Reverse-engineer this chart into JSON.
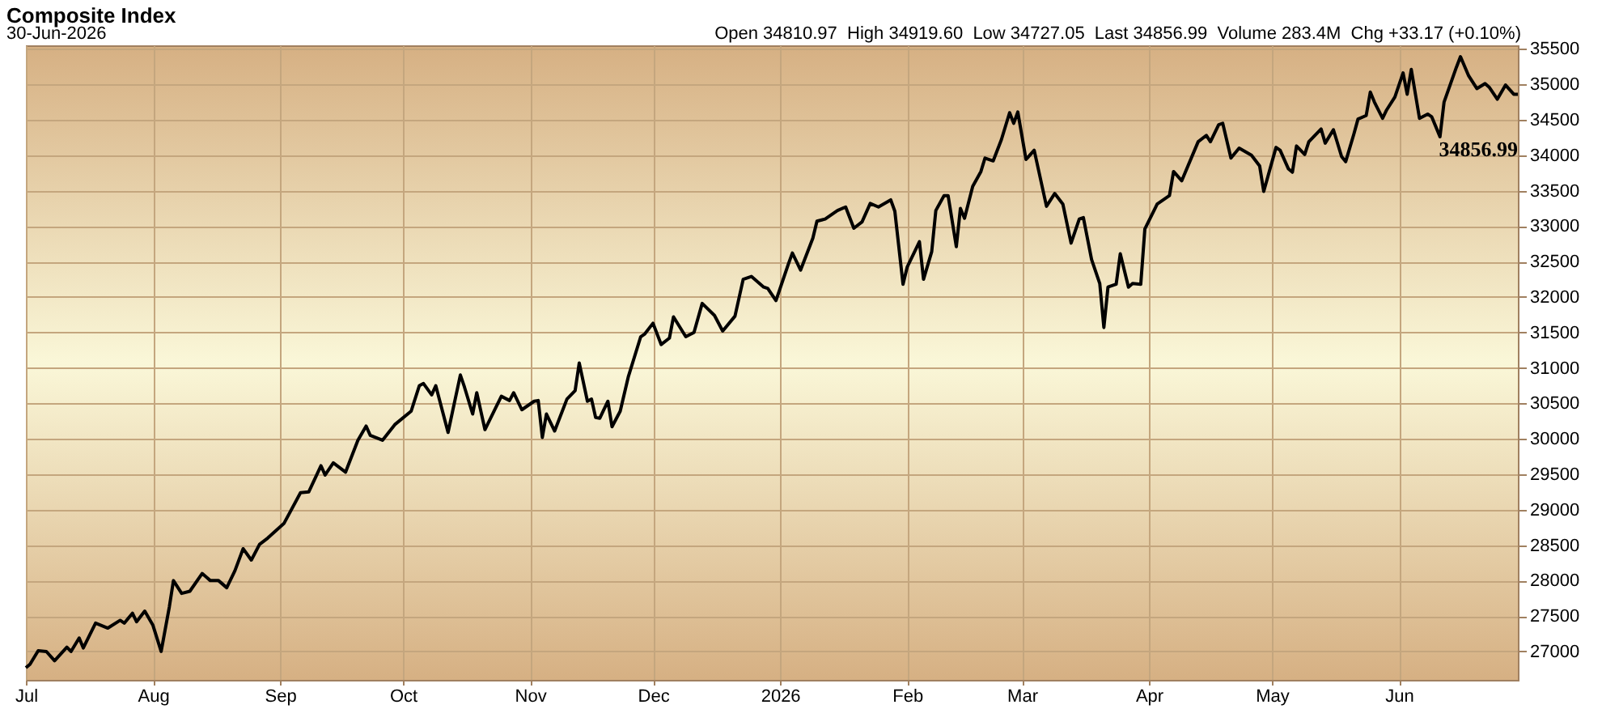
{
  "chart_data": {
    "type": "line",
    "title": "Composite Index",
    "subtitle": "30-Jun-2026",
    "annotations": [
      "Open 34810.97  High 34919.60  Low 34727.05  Last 34856.99  Volume 283.4M  Chg +33.17 (+0.10%)",
      {
        "text": "34856.99",
        "x": "2026-06-30",
        "y": 34856.99
      }
    ],
    "x": [
      "2025-07-01",
      "2025-07-02",
      "2025-07-04",
      "2025-07-06",
      "2025-07-08",
      "2025-07-11",
      "2025-07-12",
      "2025-07-14",
      "2025-07-15",
      "2025-07-18",
      "2025-07-21",
      "2025-07-24",
      "2025-07-25",
      "2025-07-27",
      "2025-07-28",
      "2025-07-30",
      "2025-08-01",
      "2025-08-03",
      "2025-08-05",
      "2025-08-06",
      "2025-08-08",
      "2025-08-10",
      "2025-08-13",
      "2025-08-15",
      "2025-08-17",
      "2025-08-19",
      "2025-08-21",
      "2025-08-23",
      "2025-08-25",
      "2025-08-27",
      "2025-08-29",
      "2025-09-02",
      "2025-09-06",
      "2025-09-08",
      "2025-09-11",
      "2025-09-12",
      "2025-09-14",
      "2025-09-17",
      "2025-09-20",
      "2025-09-22",
      "2025-09-23",
      "2025-09-26",
      "2025-09-29",
      "2025-10-03",
      "2025-10-05",
      "2025-10-06",
      "2025-10-08",
      "2025-10-09",
      "2025-10-12",
      "2025-10-15",
      "2025-10-16",
      "2025-10-18",
      "2025-10-19",
      "2025-10-21",
      "2025-10-25",
      "2025-10-27",
      "2025-10-28",
      "2025-10-30",
      "2025-11-02",
      "2025-11-03",
      "2025-11-04",
      "2025-11-05",
      "2025-11-07",
      "2025-11-10",
      "2025-11-12",
      "2025-11-13",
      "2025-11-15",
      "2025-11-16",
      "2025-11-17",
      "2025-11-18",
      "2025-11-20",
      "2025-11-21",
      "2025-11-23",
      "2025-11-25",
      "2025-11-28",
      "2025-11-29",
      "2025-12-01",
      "2025-12-03",
      "2025-12-05",
      "2025-12-06",
      "2025-12-09",
      "2025-12-11",
      "2025-12-13",
      "2025-12-16",
      "2025-12-18",
      "2025-12-21",
      "2025-12-23",
      "2025-12-25",
      "2025-12-28",
      "2025-12-29",
      "2025-12-31",
      "2026-01-03",
      "2026-01-04",
      "2026-01-06",
      "2026-01-09",
      "2026-01-10",
      "2026-01-12",
      "2026-01-15",
      "2026-01-17",
      "2026-01-19",
      "2026-01-21",
      "2026-01-23",
      "2026-01-25",
      "2026-01-28",
      "2026-01-29",
      "2026-01-31",
      "2026-02-01",
      "2026-02-04",
      "2026-02-05",
      "2026-02-07",
      "2026-02-08",
      "2026-02-10",
      "2026-02-11",
      "2026-02-13",
      "2026-02-14",
      "2026-02-15",
      "2026-02-17",
      "2026-02-19",
      "2026-02-20",
      "2026-02-22",
      "2026-02-24",
      "2026-02-26",
      "2026-02-27",
      "2026-02-28",
      "2026-03-02",
      "2026-03-04",
      "2026-03-07",
      "2026-03-09",
      "2026-03-11",
      "2026-03-13",
      "2026-03-15",
      "2026-03-16",
      "2026-03-18",
      "2026-03-20",
      "2026-03-21",
      "2026-03-22",
      "2026-03-24",
      "2026-03-25",
      "2026-03-27",
      "2026-03-28",
      "2026-03-30",
      "2026-03-31",
      "2026-04-03",
      "2026-04-06",
      "2026-04-07",
      "2026-04-09",
      "2026-04-13",
      "2026-04-15",
      "2026-04-16",
      "2026-04-18",
      "2026-04-19",
      "2026-04-21",
      "2026-04-23",
      "2026-04-26",
      "2026-04-28",
      "2026-04-29",
      "2026-05-02",
      "2026-05-03",
      "2026-05-05",
      "2026-05-06",
      "2026-05-07",
      "2026-05-09",
      "2026-05-10",
      "2026-05-13",
      "2026-05-14",
      "2026-05-16",
      "2026-05-18",
      "2026-05-19",
      "2026-05-21",
      "2026-05-22",
      "2026-05-24",
      "2026-05-25",
      "2026-05-26",
      "2026-05-28",
      "2026-05-29",
      "2026-05-31",
      "2026-06-02",
      "2026-06-03",
      "2026-06-04",
      "2026-06-06",
      "2026-06-08",
      "2026-06-09",
      "2026-06-11",
      "2026-06-12",
      "2026-06-15",
      "2026-06-16",
      "2026-06-18",
      "2026-06-20",
      "2026-06-22",
      "2026-06-23",
      "2026-06-25",
      "2026-06-27",
      "2026-06-29",
      "2026-06-30"
    ],
    "series": [
      {
        "color": "#000000",
        "values": [
          26770,
          26820,
          27010,
          27000,
          26870,
          27060,
          27000,
          27190,
          27050,
          27400,
          27330,
          27440,
          27400,
          27540,
          27420,
          27570,
          27370,
          27000,
          27630,
          28000,
          27820,
          27850,
          28100,
          28000,
          28000,
          27900,
          28140,
          28450,
          28290,
          28510,
          28600,
          28810,
          29240,
          29250,
          29620,
          29490,
          29660,
          29530,
          29980,
          30180,
          30050,
          29980,
          30200,
          30390,
          30750,
          30780,
          30620,
          30750,
          30090,
          30900,
          30730,
          30350,
          30650,
          30130,
          30600,
          30540,
          30650,
          30410,
          30530,
          30540,
          30020,
          30350,
          30110,
          30560,
          30680,
          31070,
          30530,
          30560,
          30300,
          30290,
          30530,
          30170,
          30390,
          30880,
          31440,
          31480,
          31630,
          31330,
          31420,
          31720,
          31440,
          31500,
          31910,
          31740,
          31520,
          31730,
          32250,
          32290,
          32140,
          32120,
          31950,
          32460,
          32620,
          32380,
          32830,
          33070,
          33100,
          33220,
          33270,
          32970,
          33060,
          33320,
          33270,
          33370,
          33210,
          32180,
          32420,
          32780,
          32250,
          32640,
          33220,
          33430,
          33430,
          32710,
          33250,
          33110,
          33560,
          33770,
          33960,
          33920,
          34220,
          34600,
          34450,
          34610,
          33940,
          34070,
          33280,
          33460,
          33310,
          32760,
          33100,
          33120,
          32530,
          32190,
          31570,
          32140,
          32180,
          32610,
          32140,
          32190,
          32180,
          32960,
          33310,
          33430,
          33770,
          33640,
          34190,
          34280,
          34190,
          34430,
          34450,
          33960,
          34100,
          34000,
          33850,
          33490,
          34110,
          34070,
          33810,
          33760,
          34130,
          34010,
          34190,
          34370,
          34170,
          34360,
          33980,
          33910,
          34300,
          34510,
          34560,
          34890,
          34750,
          34520,
          34640,
          34820,
          35160,
          34860,
          35210,
          34520,
          34580,
          34540,
          34260,
          34750,
          35240,
          35390,
          35120,
          34940,
          35010,
          34960,
          34790,
          34990,
          34860,
          34860
        ]
      }
    ],
    "xlim": [
      "2025-07-01",
      "2026-06-30"
    ],
    "ylim": [
      26600,
      35550
    ],
    "xticks": [
      {
        "value": "2025-07-01",
        "label": "Jul"
      },
      {
        "value": "2025-08-01",
        "label": "Aug"
      },
      {
        "value": "2025-09-01",
        "label": "Sep"
      },
      {
        "value": "2025-10-01",
        "label": "Oct"
      },
      {
        "value": "2025-11-01",
        "label": "Nov"
      },
      {
        "value": "2025-12-01",
        "label": "Dec"
      },
      {
        "value": "2026-01-01",
        "label": "2026"
      },
      {
        "value": "2026-02-01",
        "label": "Feb"
      },
      {
        "value": "2026-03-01",
        "label": "Mar"
      },
      {
        "value": "2026-04-01",
        "label": "Apr"
      },
      {
        "value": "2026-05-01",
        "label": "May"
      },
      {
        "value": "2026-06-01",
        "label": "Jun"
      }
    ],
    "yticks": [
      27000,
      27500,
      28000,
      28500,
      29000,
      29500,
      30000,
      30500,
      31000,
      31500,
      32000,
      32500,
      33000,
      33500,
      34000,
      34500,
      35000,
      35500
    ],
    "grid": true,
    "line_style": "solid",
    "marker": "none"
  }
}
